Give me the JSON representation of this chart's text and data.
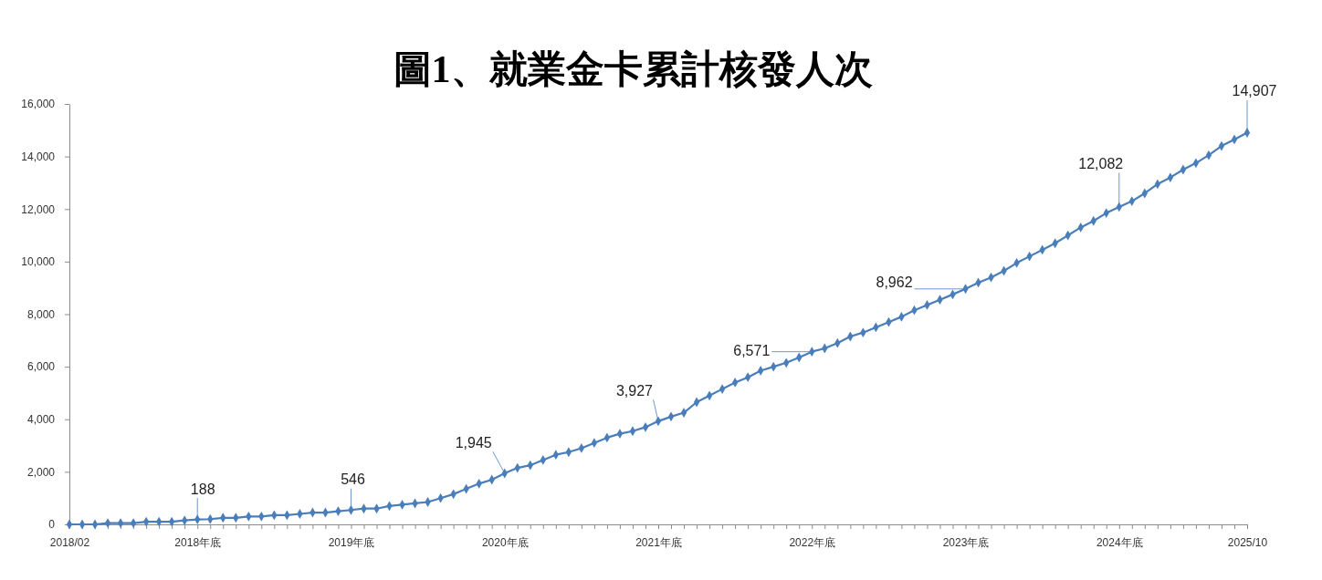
{
  "chart_data": {
    "type": "line",
    "title": "圖1、就業金卡累計核發人次",
    "categories": [
      "2018/02",
      null,
      null,
      null,
      null,
      null,
      null,
      null,
      null,
      null,
      "2018年底",
      null,
      null,
      null,
      null,
      null,
      null,
      null,
      null,
      null,
      null,
      null,
      "2019年底",
      null,
      null,
      null,
      null,
      null,
      null,
      null,
      null,
      null,
      null,
      null,
      "2020年底",
      null,
      null,
      null,
      null,
      null,
      null,
      null,
      null,
      null,
      null,
      null,
      "2021年底",
      null,
      null,
      null,
      null,
      null,
      null,
      null,
      null,
      null,
      null,
      null,
      "2022年底",
      null,
      null,
      null,
      null,
      null,
      null,
      null,
      null,
      null,
      null,
      null,
      "2023年底",
      null,
      null,
      null,
      null,
      null,
      null,
      null,
      null,
      null,
      null,
      null,
      "2024年底",
      null,
      null,
      null,
      null,
      null,
      null,
      null,
      null,
      null,
      "2025/10"
    ],
    "series": [
      {
        "color": "#4a7ebb",
        "values": [
          0,
          0,
          0,
          50,
          50,
          50,
          100,
          100,
          100,
          150,
          188,
          200,
          250,
          250,
          300,
          300,
          350,
          350,
          400,
          450,
          450,
          500,
          546,
          600,
          600,
          700,
          750,
          800,
          850,
          1000,
          1150,
          1350,
          1550,
          1700,
          1945,
          2150,
          2250,
          2450,
          2650,
          2750,
          2900,
          3100,
          3300,
          3450,
          3550,
          3700,
          3927,
          4100,
          4250,
          4650,
          4900,
          5150,
          5400,
          5600,
          5850,
          6000,
          6150,
          6350,
          6571,
          6700,
          6900,
          7150,
          7300,
          7500,
          7700,
          7900,
          8150,
          8350,
          8550,
          8750,
          8962,
          9200,
          9400,
          9650,
          9950,
          10200,
          10450,
          10700,
          11000,
          11300,
          11550,
          11850,
          12082,
          12300,
          12600,
          12950,
          13200,
          13500,
          13750,
          14050,
          14400,
          14650,
          14907
        ],
        "value_labels": [
          null,
          null,
          null,
          null,
          null,
          null,
          null,
          null,
          null,
          null,
          "188",
          null,
          null,
          null,
          null,
          null,
          null,
          null,
          null,
          null,
          null,
          null,
          "546",
          null,
          null,
          null,
          null,
          null,
          null,
          null,
          null,
          null,
          null,
          null,
          "1,945",
          null,
          null,
          null,
          null,
          null,
          null,
          null,
          null,
          null,
          null,
          null,
          "3,927",
          null,
          null,
          null,
          null,
          null,
          null,
          null,
          null,
          null,
          null,
          null,
          "6,571",
          null,
          null,
          null,
          null,
          null,
          null,
          null,
          null,
          null,
          null,
          null,
          "8,962",
          null,
          null,
          null,
          null,
          null,
          null,
          null,
          null,
          null,
          null,
          null,
          "12,082",
          null,
          null,
          null,
          null,
          null,
          null,
          null,
          null,
          null,
          "14,907"
        ]
      }
    ],
    "ylim": [
      0,
      16000
    ],
    "yticks": [
      0,
      {
        "value": 2000,
        "label": "2,000"
      },
      {
        "value": 4000,
        "label": "4,000"
      },
      {
        "value": 6000,
        "label": "6,000"
      },
      {
        "value": 8000,
        "label": "8,000"
      },
      {
        "value": 10000,
        "label": "10,000"
      },
      {
        "value": 12000,
        "label": "12,000"
      },
      {
        "value": 14000,
        "label": "14,000"
      },
      {
        "value": 16000,
        "label": "16,000"
      }
    ],
    "marker": "diamond"
  }
}
